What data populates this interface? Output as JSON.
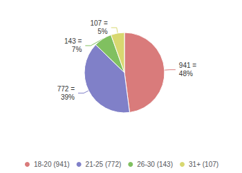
{
  "chart_data": {
    "type": "pie",
    "categories": [
      "18-20 (941)",
      "21-25 (772)",
      "26-30 (143)",
      "31+ (107)"
    ],
    "values": [
      941,
      772,
      143,
      107
    ],
    "value_labels": [
      "941 =\n48%",
      "772 =\n39%",
      "143 =\n7%",
      "107 =\n5%"
    ],
    "colors": [
      "#D97B7B",
      "#8080C8",
      "#80C060",
      "#D8D870"
    ],
    "data_labels": true,
    "legend": "bottom"
  }
}
